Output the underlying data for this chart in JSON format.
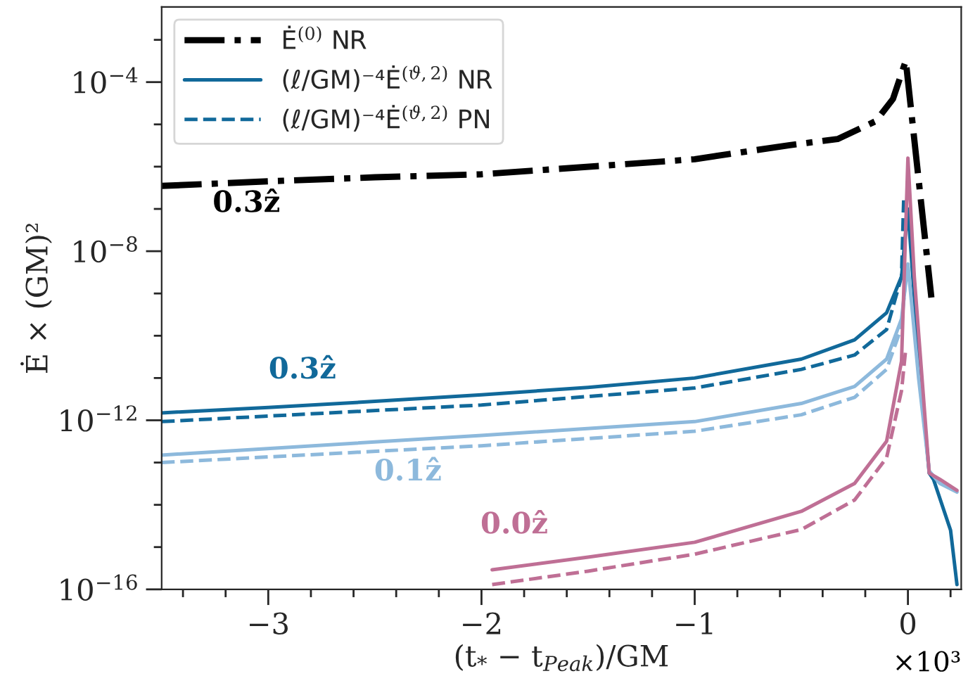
{
  "chart_data": {
    "type": "line",
    "xlabel": "(t$_{*}$ − t$_{Peak}$)/GM",
    "ylabel": "Ė × (GM)²",
    "xlim": [
      -3.5,
      0.25
    ],
    "ylim": [
      1e-16,
      0.006
    ],
    "log": "y",
    "legend": "top left",
    "grid": false,
    "marker": "none",
    "xticks": [
      {
        "value": -3,
        "label": "−3"
      },
      {
        "value": -2,
        "label": "−2"
      },
      {
        "value": -1,
        "label": "−1"
      },
      0
    ],
    "yticks": [
      {
        "value": 1e-16,
        "label": "10$^{−16}$"
      },
      {
        "value": 1e-12,
        "label": "10$^{−12}$"
      },
      {
        "value": 1e-08,
        "label": "10$^{−8}$"
      },
      {
        "value": 0.0001,
        "label": "10$^{−4}$"
      }
    ],
    "annotations": [
      "0.3ẑ",
      "0.3ẑ",
      "0.1ẑ",
      "0.0ẑ",
      "×10³"
    ],
    "series": [
      {
        "name": "Ė$^{(0)}$ NR",
        "color": "#000000",
        "line_style": "dashdot",
        "x": [
          -3.5,
          -3,
          -2.5,
          -2,
          -1,
          -0.56,
          -0.33,
          -0.15,
          -0.07,
          -0.01,
          0.11
        ],
        "values": [
          3.5e-07,
          4.5e-07,
          5.6e-07,
          6.6e-07,
          1.5e-06,
          3.2e-06,
          4.5e-06,
          1.2e-05,
          4e-05,
          0.00032,
          8e-10
        ]
      },
      {
        "name": "(ℓ/GM)⁻⁴Ė$^{(ϑ,2)}$ NR",
        "color": "#11699a",
        "line_style": "solid",
        "x": [
          -3.5,
          -3,
          -2.5,
          -2,
          -1.5,
          -1,
          -0.5,
          -0.25,
          -0.1,
          -0.03,
          0.0,
          0.05,
          0.1,
          0.12,
          0.2,
          0.23
        ],
        "values": [
          1.5e-12,
          2e-12,
          2.8e-12,
          4e-12,
          6e-12,
          1e-11,
          2.8e-11,
          8e-11,
          3.5e-10,
          2.5e-09,
          1e-07,
          3.2e-11,
          5.6e-14,
          4e-14,
          2.5e-15,
          1.3e-16
        ]
      },
      {
        "name": "(ℓ/GM)⁻⁴Ė$^{(ϑ,2)}$ PN",
        "color": "#11699a",
        "line_style": "dashed",
        "x": [
          -3.5,
          -2,
          -1,
          -0.5,
          -0.25,
          -0.1,
          -0.03,
          -0.02
        ],
        "values": [
          9.3e-13,
          2.3e-12,
          5.8e-12,
          1.6e-11,
          3.5e-11,
          1.4e-10,
          2.5e-09,
          1.6e-07
        ]
      },
      {
        "color": "#8db9dc",
        "line_style": "solid",
        "x": [
          -3.5,
          -2,
          -1,
          -0.5,
          -0.25,
          -0.1,
          -0.03,
          0.0,
          0.05,
          0.1,
          0.15,
          0.23
        ],
        "values": [
          1.5e-13,
          4.4e-13,
          9.3e-13,
          2.5e-12,
          6.3e-12,
          2.8e-11,
          2.5e-10,
          5e-09,
          1e-11,
          6.3e-14,
          3.2e-14,
          2e-14
        ]
      },
      {
        "color": "#8db9dc",
        "line_style": "dashed",
        "x": [
          -3.5,
          -2,
          -1,
          -0.5,
          -0.25,
          -0.1,
          -0.03,
          -0.01
        ],
        "values": [
          1e-13,
          2.5e-13,
          5.5e-13,
          1.35e-12,
          3.5e-12,
          1.6e-11,
          1.6e-10,
          2.5e-09
        ]
      },
      {
        "color": "#bf6f95",
        "line_style": "solid",
        "x": [
          -1.95,
          -1.5,
          -1,
          -0.5,
          -0.25,
          -0.1,
          -0.03,
          0.0,
          0.03,
          0.1,
          0.15,
          0.23
        ],
        "values": [
          2.9e-16,
          5.8e-16,
          1.3e-15,
          7e-15,
          3.2e-14,
          3.2e-13,
          2.5e-11,
          1.6e-06,
          2.5e-09,
          5.6e-14,
          4e-14,
          2.2e-14
        ]
      },
      {
        "color": "#bf6f95",
        "line_style": "dashed",
        "x": [
          -1.95,
          -1.5,
          -1,
          -0.5,
          -0.25,
          -0.1,
          -0.03,
          -0.01
        ],
        "values": [
          1.3e-16,
          2.7e-16,
          6.8e-16,
          2.6e-15,
          1.3e-14,
          1.3e-13,
          5e-12,
          5e-11
        ]
      }
    ]
  }
}
